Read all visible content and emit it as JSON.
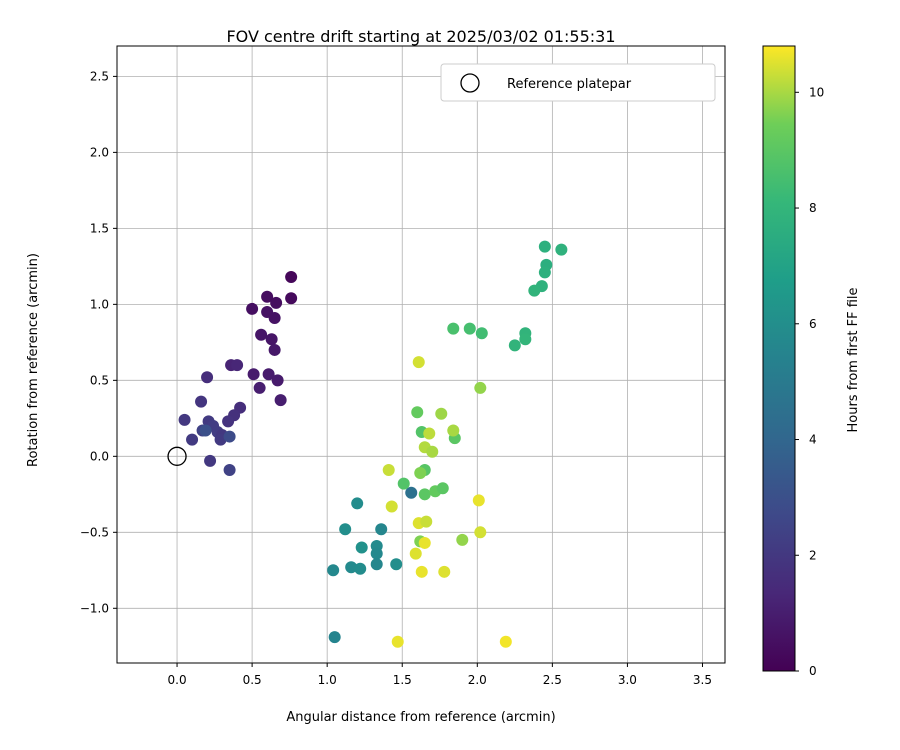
{
  "chart_data": {
    "type": "scatter",
    "title": "FOV centre drift starting at 2025/03/02 01:55:31",
    "xlabel": "Angular distance from reference (arcmin)",
    "ylabel": "Rotation from reference (arcmin)",
    "xlim": [
      -0.4,
      3.65
    ],
    "ylim": [
      -1.36,
      2.7
    ],
    "xticks": [
      "0.0",
      "0.5",
      "1.0",
      "1.5",
      "2.0",
      "2.5",
      "3.0",
      "3.5"
    ],
    "yticks": [
      "−1.0",
      "−0.5",
      "0.0",
      "0.5",
      "1.0",
      "1.5",
      "2.0",
      "2.5"
    ],
    "grid": true,
    "legend": {
      "location": "upper-right",
      "entries": [
        {
          "label": "Reference platepar",
          "marker": "open-circle"
        }
      ]
    },
    "colorbar": {
      "label": "Hours from first FF file",
      "colormap": "viridis",
      "range": [
        0,
        10.8
      ],
      "ticks": [
        "0",
        "2",
        "4",
        "6",
        "8",
        "10"
      ]
    },
    "reference_point": {
      "x": 0.0,
      "y": 0.0
    },
    "points": [
      {
        "x": 0.76,
        "y": 1.18,
        "h": 0.2
      },
      {
        "x": 0.76,
        "y": 1.04,
        "h": 0.3
      },
      {
        "x": 0.6,
        "y": 1.05,
        "h": 0.4
      },
      {
        "x": 0.5,
        "y": 0.97,
        "h": 0.5
      },
      {
        "x": 0.66,
        "y": 1.01,
        "h": 0.4
      },
      {
        "x": 0.6,
        "y": 0.95,
        "h": 0.6
      },
      {
        "x": 0.65,
        "y": 0.91,
        "h": 0.6
      },
      {
        "x": 0.56,
        "y": 0.8,
        "h": 0.7
      },
      {
        "x": 0.63,
        "y": 0.77,
        "h": 0.7
      },
      {
        "x": 0.65,
        "y": 0.7,
        "h": 0.8
      },
      {
        "x": 0.51,
        "y": 0.54,
        "h": 0.9
      },
      {
        "x": 0.61,
        "y": 0.54,
        "h": 0.9
      },
      {
        "x": 0.67,
        "y": 0.5,
        "h": 0.9
      },
      {
        "x": 0.55,
        "y": 0.45,
        "h": 1.0
      },
      {
        "x": 0.69,
        "y": 0.37,
        "h": 1.0
      },
      {
        "x": 0.36,
        "y": 0.6,
        "h": 1.2
      },
      {
        "x": 0.4,
        "y": 0.6,
        "h": 1.3
      },
      {
        "x": 0.2,
        "y": 0.52,
        "h": 1.6
      },
      {
        "x": 0.42,
        "y": 0.32,
        "h": 1.6
      },
      {
        "x": 0.38,
        "y": 0.27,
        "h": 1.7
      },
      {
        "x": 0.16,
        "y": 0.36,
        "h": 1.9
      },
      {
        "x": 0.34,
        "y": 0.23,
        "h": 1.8
      },
      {
        "x": 0.05,
        "y": 0.24,
        "h": 2.0
      },
      {
        "x": 0.21,
        "y": 0.23,
        "h": 2.1
      },
      {
        "x": 0.24,
        "y": 0.2,
        "h": 2.2
      },
      {
        "x": 0.17,
        "y": 0.17,
        "h": 2.4
      },
      {
        "x": 0.27,
        "y": 0.16,
        "h": 2.2
      },
      {
        "x": 0.3,
        "y": 0.14,
        "h": 2.0
      },
      {
        "x": 0.1,
        "y": 0.11,
        "h": 2.1
      },
      {
        "x": 0.29,
        "y": 0.11,
        "h": 2.1
      },
      {
        "x": 0.35,
        "y": 0.13,
        "h": 2.8
      },
      {
        "x": 0.19,
        "y": 0.17,
        "h": 3.0
      },
      {
        "x": 0.22,
        "y": -0.03,
        "h": 2.0
      },
      {
        "x": 0.35,
        "y": -0.09,
        "h": 2.4
      },
      {
        "x": 1.56,
        "y": -0.24,
        "h": 4.5
      },
      {
        "x": 1.2,
        "y": -0.31,
        "h": 5.9
      },
      {
        "x": 1.12,
        "y": -0.48,
        "h": 6.0
      },
      {
        "x": 1.36,
        "y": -0.48,
        "h": 5.6
      },
      {
        "x": 1.23,
        "y": -0.6,
        "h": 6.1
      },
      {
        "x": 1.33,
        "y": -0.59,
        "h": 5.8
      },
      {
        "x": 1.33,
        "y": -0.64,
        "h": 5.7
      },
      {
        "x": 1.16,
        "y": -0.73,
        "h": 5.8
      },
      {
        "x": 1.22,
        "y": -0.74,
        "h": 5.9
      },
      {
        "x": 1.33,
        "y": -0.71,
        "h": 5.6
      },
      {
        "x": 1.46,
        "y": -0.71,
        "h": 6.0
      },
      {
        "x": 1.04,
        "y": -0.75,
        "h": 5.7
      },
      {
        "x": 1.05,
        "y": -1.19,
        "h": 5.5
      },
      {
        "x": 2.45,
        "y": 1.38,
        "h": 7.7
      },
      {
        "x": 2.56,
        "y": 1.36,
        "h": 7.8
      },
      {
        "x": 2.46,
        "y": 1.26,
        "h": 7.6
      },
      {
        "x": 2.45,
        "y": 1.21,
        "h": 7.7
      },
      {
        "x": 2.43,
        "y": 1.12,
        "h": 7.8
      },
      {
        "x": 2.38,
        "y": 1.09,
        "h": 7.9
      },
      {
        "x": 2.32,
        "y": 0.81,
        "h": 7.9
      },
      {
        "x": 2.32,
        "y": 0.77,
        "h": 8.0
      },
      {
        "x": 2.25,
        "y": 0.73,
        "h": 7.9
      },
      {
        "x": 1.84,
        "y": 0.84,
        "h": 8.6
      },
      {
        "x": 1.95,
        "y": 0.84,
        "h": 8.5
      },
      {
        "x": 2.03,
        "y": 0.81,
        "h": 8.4
      },
      {
        "x": 1.85,
        "y": 0.12,
        "h": 9.0
      },
      {
        "x": 1.6,
        "y": 0.29,
        "h": 9.2
      },
      {
        "x": 1.63,
        "y": 0.16,
        "h": 8.8
      },
      {
        "x": 1.65,
        "y": -0.09,
        "h": 8.9
      },
      {
        "x": 1.65,
        "y": -0.25,
        "h": 9.0
      },
      {
        "x": 1.72,
        "y": -0.23,
        "h": 9.2
      },
      {
        "x": 1.77,
        "y": -0.21,
        "h": 9.0
      },
      {
        "x": 1.51,
        "y": -0.18,
        "h": 8.8
      },
      {
        "x": 1.62,
        "y": -0.11,
        "h": 9.6
      },
      {
        "x": 1.61,
        "y": 0.62,
        "h": 10.4
      },
      {
        "x": 2.02,
        "y": 0.45,
        "h": 9.8
      },
      {
        "x": 1.76,
        "y": 0.28,
        "h": 9.9
      },
      {
        "x": 1.84,
        "y": 0.17,
        "h": 10.0
      },
      {
        "x": 1.68,
        "y": 0.15,
        "h": 10.2
      },
      {
        "x": 1.65,
        "y": 0.06,
        "h": 10.1
      },
      {
        "x": 1.7,
        "y": 0.03,
        "h": 10.0
      },
      {
        "x": 1.41,
        "y": -0.09,
        "h": 10.3
      },
      {
        "x": 1.43,
        "y": -0.33,
        "h": 10.4
      },
      {
        "x": 2.01,
        "y": -0.29,
        "h": 10.6
      },
      {
        "x": 1.61,
        "y": -0.44,
        "h": 10.5
      },
      {
        "x": 1.66,
        "y": -0.43,
        "h": 10.3
      },
      {
        "x": 2.02,
        "y": -0.5,
        "h": 10.4
      },
      {
        "x": 1.9,
        "y": -0.55,
        "h": 9.8
      },
      {
        "x": 1.62,
        "y": -0.56,
        "h": 9.6
      },
      {
        "x": 1.65,
        "y": -0.57,
        "h": 10.6
      },
      {
        "x": 1.59,
        "y": -0.64,
        "h": 10.5
      },
      {
        "x": 1.63,
        "y": -0.76,
        "h": 10.6
      },
      {
        "x": 1.78,
        "y": -0.76,
        "h": 10.5
      },
      {
        "x": 1.47,
        "y": -1.22,
        "h": 10.6
      },
      {
        "x": 2.19,
        "y": -1.22,
        "h": 10.7
      }
    ]
  }
}
